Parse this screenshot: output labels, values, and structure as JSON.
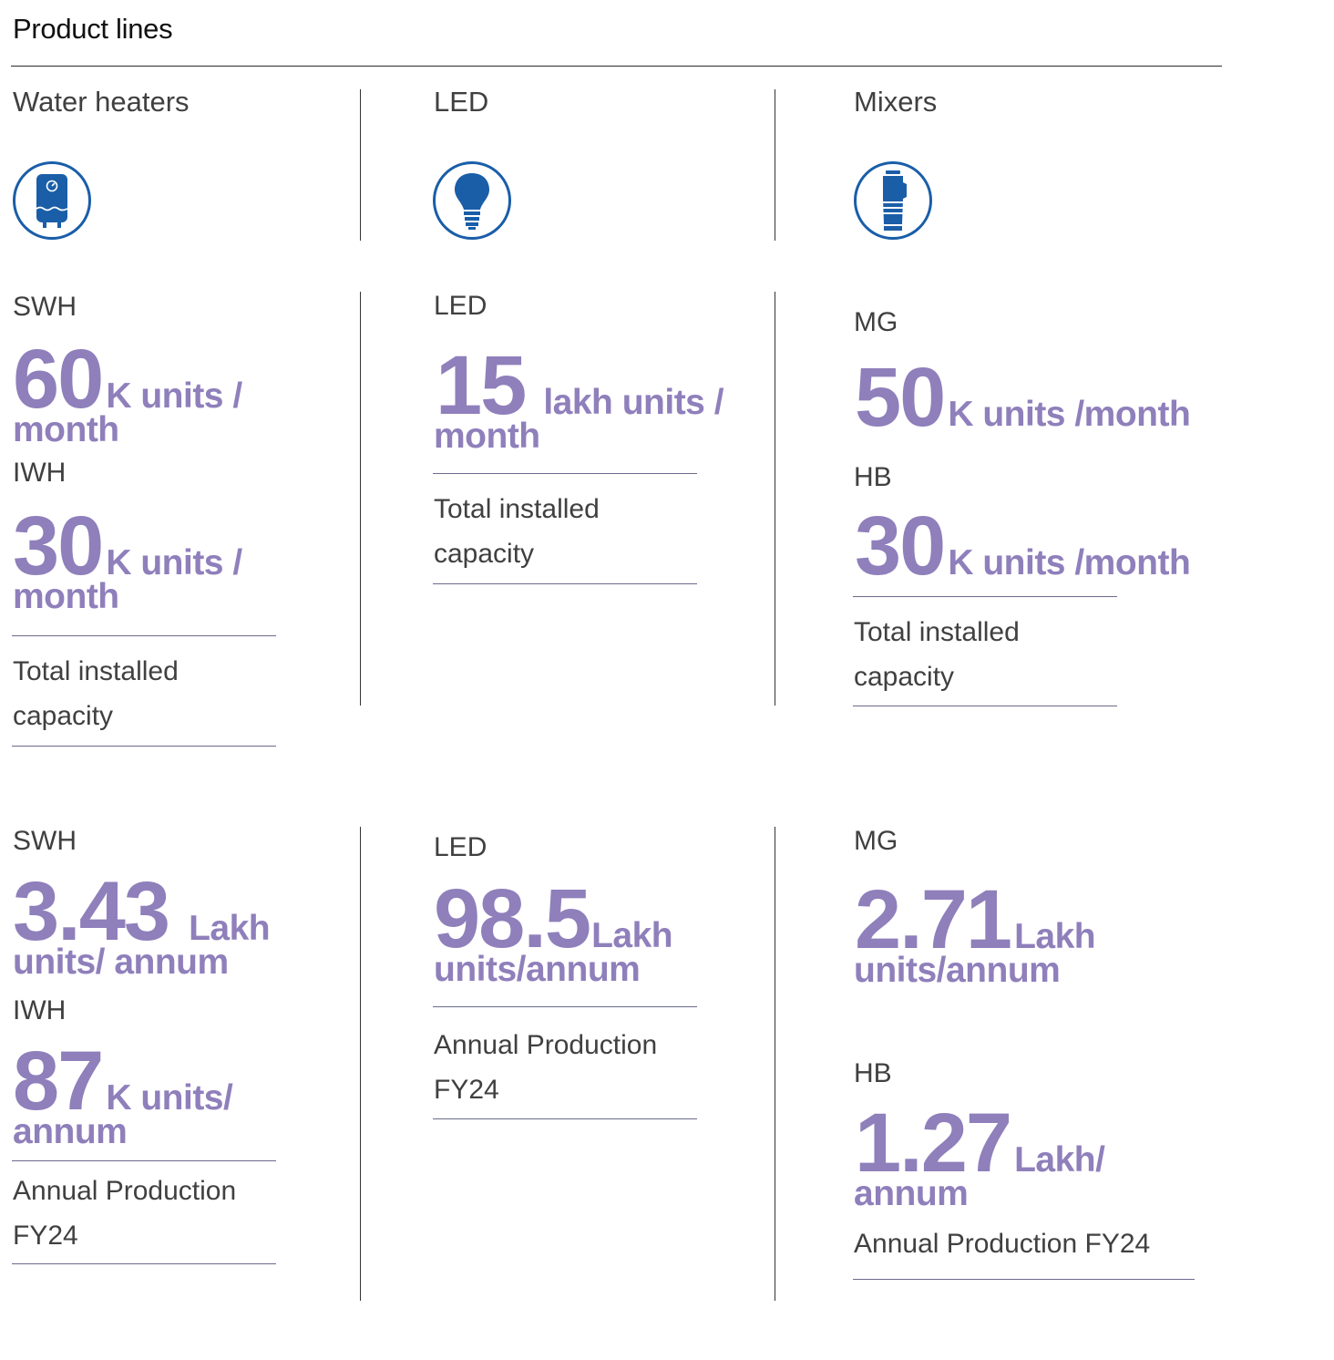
{
  "page": {
    "title": "Product lines"
  },
  "colors": {
    "accent": "#8f7fbb",
    "icon_blue": "#1a5ea8",
    "rule": "#6b6a8c"
  },
  "columns": [
    {
      "category": "Water heaters",
      "icon": "water-heater-icon",
      "capacity": [
        {
          "label": "SWH",
          "value": "60",
          "unit_a": "K units /",
          "unit_b": "month"
        },
        {
          "label": "IWH",
          "value": "30",
          "unit_a": "K units /",
          "unit_b": "month"
        }
      ],
      "capacity_caption": [
        "Total installed",
        "capacity"
      ],
      "production": [
        {
          "label": "SWH",
          "value": "3.43",
          "unit_a": "Lakh",
          "unit_b": "units/ annum"
        },
        {
          "label": "IWH",
          "value": "87",
          "unit_a": "K units/",
          "unit_b": "annum"
        }
      ],
      "production_caption": [
        "Annual Production",
        "FY24"
      ]
    },
    {
      "category": "LED",
      "icon": "bulb-icon",
      "capacity": [
        {
          "label": "LED",
          "value": "15",
          "unit_a": "lakh units /",
          "unit_b": "month"
        }
      ],
      "capacity_caption": [
        "Total installed",
        "capacity"
      ],
      "production": [
        {
          "label": "LED",
          "value": "98.5",
          "unit_a": "Lakh",
          "unit_b": "units/annum"
        }
      ],
      "production_caption": [
        "Annual Production",
        "FY24"
      ]
    },
    {
      "category": "Mixers",
      "icon": "mixer-jar-icon",
      "capacity": [
        {
          "label": "MG",
          "value": "50",
          "unit_a": "K units /month"
        },
        {
          "label": "HB",
          "value": "30",
          "unit_a": "K units /month"
        }
      ],
      "capacity_caption": [
        "Total installed",
        "capacity"
      ],
      "production": [
        {
          "label": "MG",
          "value": "2.71",
          "unit_a": "Lakh",
          "unit_b": "units/annum"
        },
        {
          "label": "HB",
          "value": "1.27",
          "unit_a": "Lakh/",
          "unit_b": "annum"
        }
      ],
      "production_caption": [
        "Annual Production FY24"
      ]
    }
  ]
}
